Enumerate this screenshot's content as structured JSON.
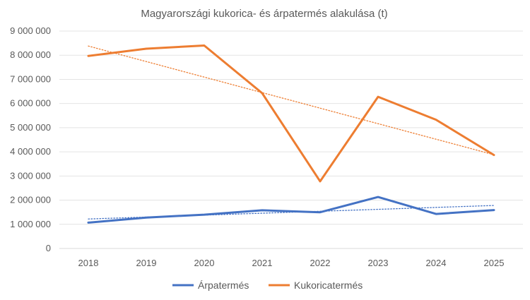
{
  "chart_data": {
    "type": "line",
    "title": "Magyarországi kukorica- és árpatermés alakulása (t)",
    "categories": [
      "2018",
      "2019",
      "2020",
      "2021",
      "2022",
      "2023",
      "2024",
      "2025"
    ],
    "ylim": [
      0,
      9000000
    ],
    "y_ticks": [
      0,
      1000000,
      2000000,
      3000000,
      4000000,
      5000000,
      6000000,
      7000000,
      8000000,
      9000000
    ],
    "y_tick_labels": [
      "0",
      "1 000 000",
      "2 000 000",
      "3 000 000",
      "4 000 000",
      "5 000 000",
      "6 000 000",
      "7 000 000",
      "8 000 000",
      "9 000 000"
    ],
    "grid": true,
    "legend_position": "bottom",
    "series": [
      {
        "name": "Árpatermés",
        "color": "#4472C4",
        "values": [
          1070000,
          1280000,
          1400000,
          1580000,
          1500000,
          2130000,
          1430000,
          1590000
        ],
        "trendline": {
          "type": "linear",
          "start": 1220000,
          "end": 1780000
        }
      },
      {
        "name": "Kukoricatermés",
        "color": "#ED7D31",
        "values": [
          7970000,
          8270000,
          8400000,
          6430000,
          2780000,
          6280000,
          5330000,
          3870000
        ],
        "trendline": {
          "type": "linear",
          "start": 8380000,
          "end": 3880000
        }
      }
    ]
  }
}
